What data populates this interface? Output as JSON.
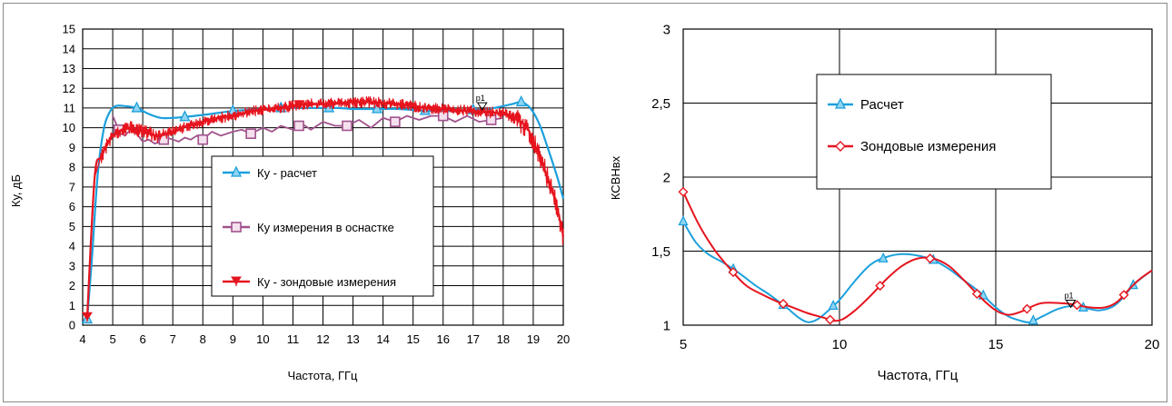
{
  "chart_data": [
    {
      "type": "line",
      "xlabel": "Частота, ГГц",
      "ylabel": "Ку, дБ",
      "xlim": [
        4,
        20
      ],
      "ylim": [
        0,
        15
      ],
      "x_ticks": [
        "4",
        "5",
        "6",
        "7",
        "8",
        "9",
        "10",
        "11",
        "12",
        "13",
        "14",
        "15",
        "16",
        "17",
        "18",
        "19",
        "20"
      ],
      "y_ticks": [
        "0",
        "1",
        "2",
        "3",
        "4",
        "5",
        "6",
        "7",
        "8",
        "9",
        "10",
        "11",
        "12",
        "13",
        "14",
        "15"
      ],
      "grid": true,
      "legend_position": "center",
      "marker_label": "p1",
      "marker_point": [
        17.3,
        10.9
      ],
      "series": [
        {
          "name": "Ку - расчет",
          "color": "#1ca0dc",
          "marker": "triangle",
          "x": [
            4.15,
            4.3,
            4.5,
            4.7,
            4.9,
            5.1,
            5.4,
            5.8,
            6.2,
            6.6,
            7.0,
            7.4,
            8.0,
            8.5,
            9.0,
            9.5,
            10.0,
            10.6,
            11.0,
            11.5,
            12.0,
            12.5,
            13.0,
            13.5,
            14.0,
            14.5,
            15.0,
            15.5,
            16.0,
            16.5,
            17.0,
            17.5,
            18.0,
            18.3,
            18.6,
            18.9,
            19.2,
            19.5,
            19.8,
            20.0
          ],
          "y": [
            0.3,
            3.2,
            7.6,
            9.9,
            10.8,
            11.1,
            11.1,
            11.0,
            10.7,
            10.5,
            10.5,
            10.55,
            10.65,
            10.75,
            10.85,
            10.9,
            10.95,
            11.0,
            11.0,
            11.0,
            11.0,
            11.0,
            10.95,
            10.95,
            10.95,
            10.95,
            10.9,
            10.85,
            10.85,
            10.85,
            10.9,
            10.95,
            11.1,
            11.2,
            11.3,
            11.0,
            10.2,
            8.9,
            7.5,
            6.4
          ],
          "marker_x": [
            4.15,
            5.8,
            7.4,
            9.0,
            10.6,
            12.2,
            13.8,
            15.4,
            17.0,
            18.6
          ]
        },
        {
          "name": "Ку измерения в оснастке",
          "color": "#a0528c",
          "marker": "square",
          "x": [
            5.0,
            5.2,
            5.4,
            5.6,
            5.8,
            6.0,
            6.2,
            6.4,
            6.6,
            6.8,
            7.0,
            7.2,
            7.4,
            7.6,
            7.8,
            8.0,
            8.3,
            8.6,
            9.0,
            9.3,
            9.6,
            10.0,
            10.3,
            10.6,
            11.0,
            11.3,
            11.6,
            12.0,
            12.4,
            12.8,
            13.2,
            13.6,
            14.0,
            14.4,
            14.8,
            15.2,
            15.6,
            16.0,
            16.4,
            16.8,
            17.2,
            17.6,
            18.0
          ],
          "y": [
            10.6,
            9.9,
            9.6,
            9.9,
            9.7,
            9.3,
            9.4,
            9.2,
            9.3,
            9.5,
            9.4,
            9.3,
            9.5,
            9.4,
            9.6,
            9.4,
            9.8,
            9.6,
            9.8,
            9.9,
            9.7,
            10.0,
            9.8,
            10.1,
            9.9,
            10.2,
            9.9,
            10.3,
            10.1,
            10.1,
            10.4,
            10.0,
            10.5,
            10.3,
            10.6,
            10.4,
            10.6,
            10.6,
            10.3,
            10.6,
            10.3,
            10.4,
            10.5
          ],
          "marker_x": [
            5.2,
            6.7,
            8.0,
            9.6,
            11.2,
            12.8,
            14.4,
            16.0,
            17.6
          ]
        },
        {
          "name": "Ку - зондовые измерения",
          "color": "#e6141e",
          "marker": "star",
          "x": [
            4.15,
            4.4,
            4.6,
            4.8,
            5.0,
            5.3,
            5.6,
            6.0,
            6.5,
            7.0,
            7.5,
            8.0,
            8.5,
            9.0,
            9.5,
            10.0,
            10.5,
            11.0,
            11.5,
            12.0,
            12.5,
            13.0,
            13.5,
            14.0,
            14.5,
            15.0,
            15.5,
            16.0,
            16.5,
            17.0,
            17.5,
            18.0,
            18.4,
            18.8,
            19.0,
            19.2,
            19.4,
            19.6,
            19.8,
            20.0
          ],
          "y": [
            0.4,
            7.5,
            8.5,
            9.1,
            9.6,
            9.9,
            10.0,
            9.8,
            9.6,
            9.8,
            10.1,
            10.3,
            10.5,
            10.6,
            10.8,
            10.9,
            11.0,
            11.1,
            11.2,
            11.2,
            11.25,
            11.3,
            11.3,
            11.25,
            11.2,
            11.1,
            11.0,
            10.95,
            10.9,
            10.85,
            10.8,
            10.7,
            10.5,
            10.0,
            9.3,
            8.6,
            7.8,
            7.0,
            5.9,
            4.5
          ],
          "marker_x": [
            4.15,
            11.2
          ]
        }
      ]
    },
    {
      "type": "line",
      "xlabel": "Частота, ГГц",
      "ylabel": "КСВНвх",
      "xlim": [
        5,
        20
      ],
      "ylim": [
        1,
        3
      ],
      "x_ticks": [
        "5",
        "10",
        "15",
        "20"
      ],
      "y_ticks": [
        "1",
        "1,5",
        "2",
        "2,5",
        "3"
      ],
      "grid": true,
      "legend_position": "center",
      "marker_label": "p1",
      "marker_point": [
        17.4,
        1.12
      ],
      "series": [
        {
          "name": "Расчет",
          "color": "#1ca0dc",
          "marker": "triangle",
          "x": [
            5.0,
            5.4,
            5.8,
            6.3,
            6.8,
            7.3,
            7.8,
            8.3,
            8.7,
            9.0,
            9.3,
            9.6,
            10.0,
            10.5,
            11.0,
            11.5,
            12.0,
            12.5,
            13.0,
            13.5,
            14.0,
            14.5,
            15.0,
            15.4,
            15.8,
            16.1,
            16.5,
            17.0,
            17.5,
            18.0,
            18.3,
            18.7,
            19.0,
            19.4,
            19.8,
            20.0
          ],
          "y": [
            1.7,
            1.56,
            1.48,
            1.42,
            1.35,
            1.27,
            1.2,
            1.12,
            1.05,
            1.02,
            1.04,
            1.09,
            1.17,
            1.3,
            1.41,
            1.46,
            1.48,
            1.47,
            1.44,
            1.38,
            1.3,
            1.22,
            1.12,
            1.06,
            1.03,
            1.02,
            1.06,
            1.11,
            1.13,
            1.11,
            1.1,
            1.12,
            1.17,
            1.27,
            1.34,
            1.37
          ],
          "marker_x": [
            5.0,
            6.6,
            8.2,
            9.8,
            11.4,
            13.0,
            14.6,
            16.2,
            17.8,
            19.4
          ]
        },
        {
          "name": "Зондовые измерения",
          "color": "#e6141e",
          "marker": "diamond",
          "x": [
            5.0,
            5.5,
            6.0,
            6.5,
            7.0,
            7.5,
            8.0,
            8.5,
            9.0,
            9.5,
            9.8,
            10.1,
            10.5,
            11.0,
            11.5,
            12.0,
            12.5,
            13.0,
            13.5,
            14.0,
            14.5,
            15.0,
            15.4,
            15.8,
            16.2,
            16.5,
            17.0,
            17.5,
            18.0,
            18.5,
            18.9,
            19.3,
            19.6,
            20.0
          ],
          "y": [
            1.9,
            1.68,
            1.51,
            1.38,
            1.27,
            1.21,
            1.16,
            1.12,
            1.08,
            1.05,
            1.03,
            1.04,
            1.1,
            1.2,
            1.31,
            1.4,
            1.45,
            1.45,
            1.4,
            1.3,
            1.19,
            1.1,
            1.07,
            1.09,
            1.13,
            1.15,
            1.15,
            1.14,
            1.12,
            1.12,
            1.16,
            1.25,
            1.31,
            1.37
          ],
          "marker_x": [
            5.0,
            6.6,
            8.2,
            9.7,
            11.3,
            12.9,
            14.4,
            16.0,
            17.6,
            19.1
          ]
        }
      ]
    }
  ]
}
